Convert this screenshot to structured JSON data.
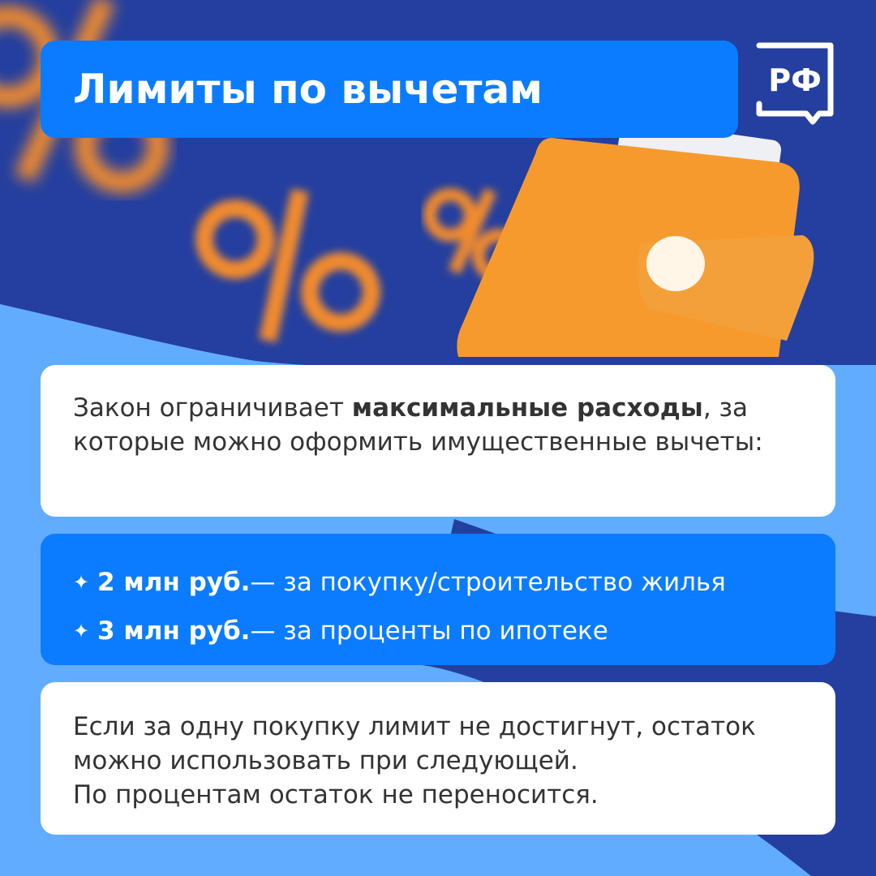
{
  "header": {
    "title": "Лимиты по вычетам"
  },
  "logo": {
    "text": "РФ"
  },
  "intro": {
    "text_before": "Закон ограничивает ",
    "bold": "максимальные расходы",
    "text_after": ", за которые можно оформить имущественные вычеты:"
  },
  "limits": [
    {
      "amount": "2 млн руб.",
      "desc": " — за покупку/строительство жилья"
    },
    {
      "amount": "3 млн руб.",
      "desc": " — за проценты по ипотеке"
    }
  ],
  "note": {
    "lines": [
      "Если за одну покупку лимит не достигнут, остаток",
      "можно использовать при следующей.",
      "По процентам остаток не переносится."
    ]
  },
  "colors": {
    "background": "#243f9f",
    "accent": "#0b7cff",
    "wave": "#62acff",
    "wallet": "#f79a2e"
  }
}
